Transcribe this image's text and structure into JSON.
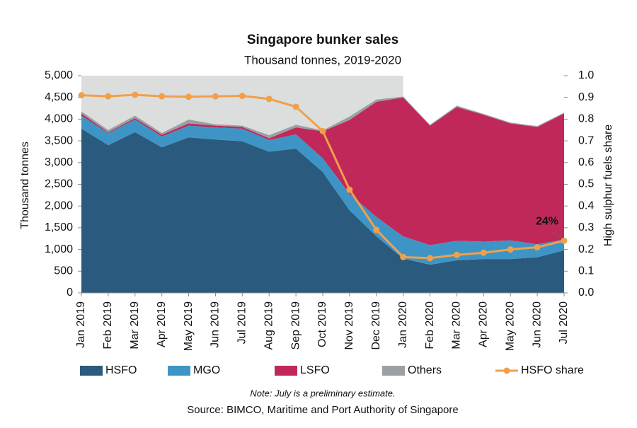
{
  "chart_data": {
    "type": "area",
    "title": "Singapore bunker sales",
    "subtitle": "Thousand tonnes, 2019-2020",
    "y_label": "Thousand tonnes",
    "y2_label": "High sulphur fuels share",
    "note": "Note: July is a preliminary estimate.",
    "source": "Source: BIMCO, Maritime and Port Authority of Singapore",
    "categories": [
      "Jan 2019",
      "Feb 2019",
      "Mar 2019",
      "Apr 2019",
      "May 2019",
      "Jun 2019",
      "Jul 2019",
      "Aug 2019",
      "Sep 2019",
      "Oct 2019",
      "Nov 2019",
      "Dec 2019",
      "Jan 2020",
      "Feb 2020",
      "Mar 2020",
      "Apr 2020",
      "May 2020",
      "Jun 2020",
      "Jul 2020"
    ],
    "series": [
      {
        "name": "HSFO",
        "color": "#2a5a7e",
        "values": [
          3780,
          3400,
          3700,
          3350,
          3580,
          3530,
          3490,
          3250,
          3320,
          2780,
          1900,
          1300,
          790,
          650,
          750,
          780,
          780,
          820,
          980
        ]
      },
      {
        "name": "MGO",
        "color": "#3e95c5",
        "values": [
          300,
          280,
          290,
          250,
          270,
          280,
          290,
          270,
          330,
          320,
          380,
          450,
          510,
          450,
          450,
          400,
          430,
          300,
          250
        ]
      },
      {
        "name": "LSFO",
        "color": "#c0285a",
        "values": [
          50,
          20,
          30,
          40,
          50,
          40,
          40,
          40,
          160,
          620,
          1700,
          2650,
          3200,
          2750,
          3080,
          2920,
          2690,
          2700,
          2900
        ]
      },
      {
        "name": "Others",
        "color": "#9aa0a3",
        "values": [
          50,
          50,
          60,
          40,
          90,
          30,
          30,
          70,
          60,
          20,
          80,
          50,
          20,
          20,
          30,
          20,
          20,
          20,
          20
        ]
      },
      {
        "name": "HSFO share",
        "type": "line",
        "axis": "y2",
        "color": "#f0a04b",
        "values": [
          0.91,
          0.905,
          0.912,
          0.905,
          0.903,
          0.905,
          0.907,
          0.893,
          0.857,
          0.745,
          0.475,
          0.29,
          0.165,
          0.16,
          0.175,
          0.185,
          0.2,
          0.21,
          0.24
        ],
        "value_labels": [
          null,
          null,
          null,
          null,
          null,
          null,
          null,
          null,
          null,
          null,
          null,
          null,
          null,
          null,
          null,
          null,
          null,
          null,
          "24%"
        ]
      }
    ],
    "ylim": [
      0,
      5000
    ],
    "yticks": [
      0,
      500,
      {
        "value": 1000,
        "label": "1,000"
      },
      {
        "value": 1500,
        "label": "1,500"
      },
      {
        "value": 2000,
        "label": "2,000"
      },
      {
        "value": 2500,
        "label": "2,500"
      },
      {
        "value": 3000,
        "label": "3,000"
      },
      {
        "value": 3500,
        "label": "3,500"
      },
      {
        "value": 4000,
        "label": "4,000"
      },
      {
        "value": 4500,
        "label": "4,500"
      },
      {
        "value": 5000,
        "label": "5,000"
      }
    ],
    "y2lim": [
      0,
      1
    ],
    "y2ticks": [
      {
        "value": 0,
        "label": "0.0"
      },
      0.1,
      0.2,
      0.3,
      0.4,
      0.5,
      0.6,
      0.7,
      0.8,
      0.9,
      {
        "value": 1,
        "label": "1.0"
      }
    ]
  }
}
